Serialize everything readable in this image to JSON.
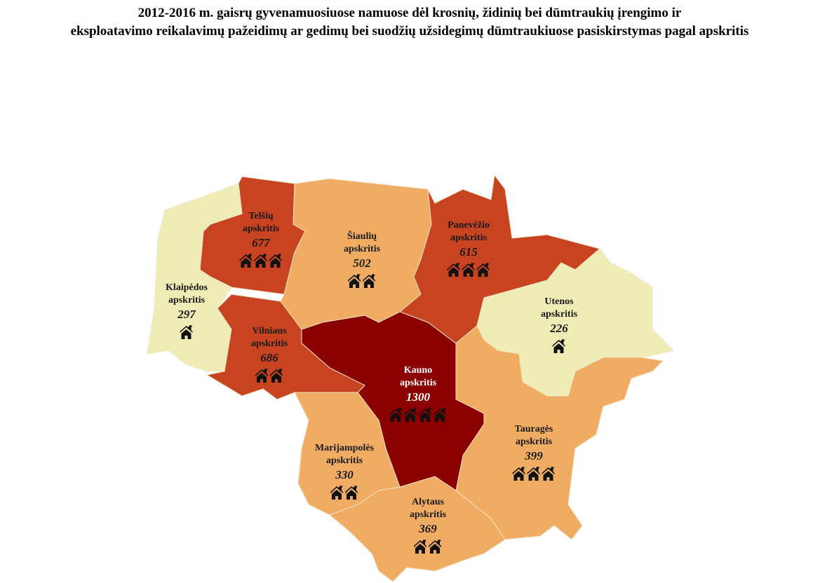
{
  "title": [
    "2012-2016 m. gaisrų gyvenamuosiuose namuose dėl krosnių, židinių bei dūmtraukių įrengimo ir",
    "eksploatavimo reikalavimų pažeidimų ar gedimų bei suodžių užsidegimų dūmtraukiuose pasiskirstymas pagal apskritis"
  ],
  "regions": [
    {
      "label": [
        "Telšių",
        "apskritis"
      ],
      "value": 677,
      "color": "#c8431f"
    },
    {
      "label": [
        "Šiaulių",
        "apskritis"
      ],
      "value": 502,
      "color": "#efac62"
    },
    {
      "label": [
        "Panevėžio",
        "apskritis"
      ],
      "value": 615,
      "color": "#c8431f"
    },
    {
      "label": [
        "Klaipėdos",
        "apskritis"
      ],
      "value": 297,
      "color": "#efedb5"
    },
    {
      "label": [
        "Utenos",
        "apskritis"
      ],
      "value": 226,
      "color": "#efedb5"
    },
    {
      "label": [
        "Tauragės",
        "apskritis"
      ],
      "value": 399,
      "color": "#efac62"
    },
    {
      "label": [
        "Kauno",
        "apskritis"
      ],
      "value": 1300,
      "color": "#8b0000"
    },
    {
      "label": [
        "Vilniaus",
        "apskritis"
      ],
      "value": 686,
      "color": "#c8431f"
    },
    {
      "label": [
        "Marijampolės",
        "apskritis"
      ],
      "value": 330,
      "color": "#efac62"
    },
    {
      "label": [
        "Alytaus",
        "apskritis"
      ],
      "value": 369,
      "color": "#efac62"
    }
  ]
}
